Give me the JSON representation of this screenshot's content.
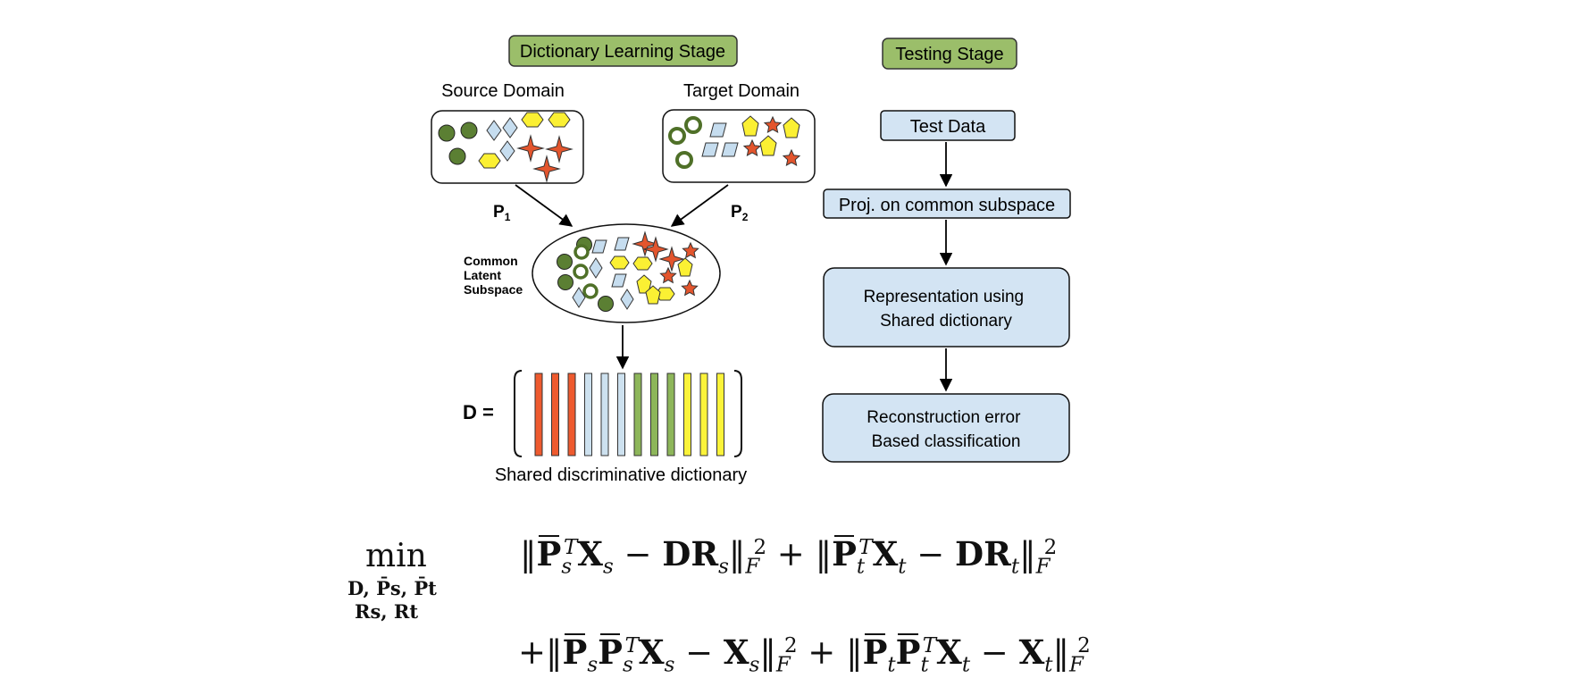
{
  "stages": {
    "learning_label": "Dictionary Learning Stage",
    "testing_label": "Testing Stage"
  },
  "domains": {
    "source_label": "Source Domain",
    "target_label": "Target Domain",
    "p1_main": "P",
    "p1_sub": "1",
    "p2_main": "P",
    "p2_sub": "2"
  },
  "subspace": {
    "label_lines": [
      "Common",
      "Latent",
      "Subspace"
    ]
  },
  "dictionary": {
    "d_label": "D =",
    "caption": "Shared discriminative dictionary",
    "atom_colors": [
      "#ee5a2e",
      "#ee5a2e",
      "#ee5a2e",
      "#cde1ef",
      "#cde1ef",
      "#cde1ef",
      "#8db65a",
      "#8db65a",
      "#8db65a",
      "#fbf33a",
      "#fbf33a",
      "#fbf33a"
    ]
  },
  "testing": {
    "test_data": "Test Data",
    "projection": "Proj. on common subspace",
    "representation_lines": [
      "Representation using",
      "Shared dictionary"
    ],
    "classification_lines": [
      "Reconstruction error",
      "Based classification"
    ]
  },
  "colors": {
    "stage_fill": "#9bbe6a",
    "box_fill": "#d3e4f3",
    "circle_green": "#5b7f33",
    "diamond_blue": "#c6ddef",
    "hex_yellow": "#fbf033",
    "star_red": "#e3552d"
  },
  "equation": {
    "min": "min",
    "min_sub_line1": "D, P̄s, P̄t",
    "min_sub_line2": "Rs, Rt"
  }
}
